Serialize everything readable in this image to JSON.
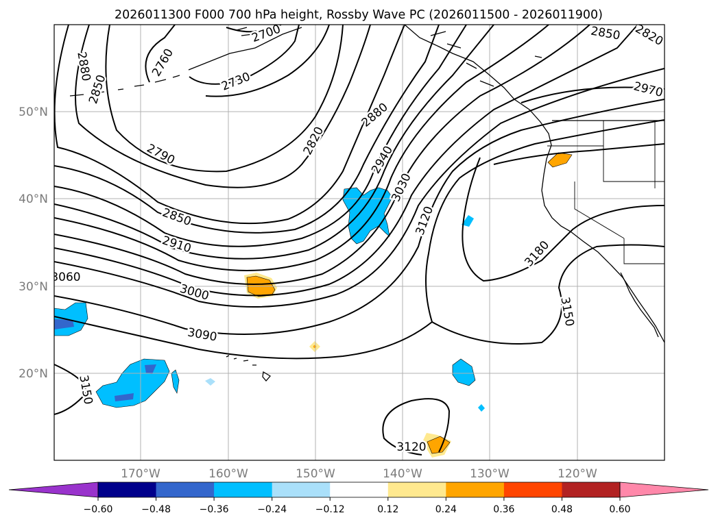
{
  "title": "2026011300 F000 700 hPa height, Rossby Wave PC (2026011500 - 2026011900)",
  "axes": {
    "lon_ticks": [
      "170°W",
      "160°W",
      "150°W",
      "140°W",
      "130°W",
      "120°W"
    ],
    "lat_ticks": [
      "50°N",
      "40°N",
      "30°N",
      "20°N"
    ],
    "lon_range": [
      -180,
      -110
    ],
    "lat_range": [
      10,
      60
    ],
    "grid": true
  },
  "contour_labels": [
    {
      "text": "2700"
    },
    {
      "text": "2760"
    },
    {
      "text": "2730"
    },
    {
      "text": "2880"
    },
    {
      "text": "2850"
    },
    {
      "text": "2790"
    },
    {
      "text": "2820"
    },
    {
      "text": "2880"
    },
    {
      "text": "2940"
    },
    {
      "text": "3030"
    },
    {
      "text": "3120"
    },
    {
      "text": "2850"
    },
    {
      "text": "2910"
    },
    {
      "text": "3000"
    },
    {
      "text": "3090"
    },
    {
      "text": "3060"
    },
    {
      "text": "3150"
    },
    {
      "text": "3180"
    },
    {
      "text": "3150"
    },
    {
      "text": "3120"
    },
    {
      "text": "2850"
    },
    {
      "text": "2820"
    },
    {
      "text": "2970"
    }
  ],
  "colorbar": {
    "ticks": [
      "−0.60",
      "−0.48",
      "−0.36",
      "−0.24",
      "−0.12",
      "0.12",
      "0.24",
      "0.36",
      "0.48",
      "0.60"
    ],
    "colors": [
      "#9933cc",
      "#00008b",
      "#3366cc",
      "#00bfff",
      "#aae0fa",
      "#ffffff",
      "#ffe98f",
      "#ffa500",
      "#ff4500",
      "#b22222",
      "#ff88aa"
    ],
    "extend": "both"
  },
  "colors": {
    "neg_light": "#00bfff",
    "neg_pale": "#aae0fa",
    "neg_mid": "#3366cc",
    "pos_light": "#ffe98f",
    "pos_mid": "#ffa500"
  }
}
